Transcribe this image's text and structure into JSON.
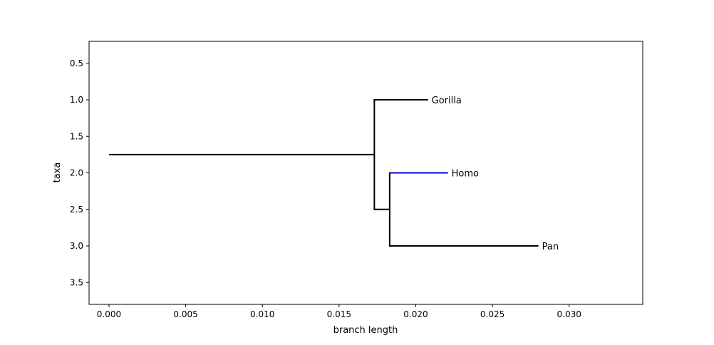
{
  "chart_data": {
    "type": "tree",
    "xlabel": "branch length",
    "ylabel": "taxa",
    "xlim": [
      -0.0013,
      0.0348
    ],
    "ylim": [
      3.8,
      0.2
    ],
    "grid": false,
    "xticks": [
      0.0,
      0.005,
      0.01,
      0.015,
      0.02,
      0.025,
      0.03
    ],
    "xtick_labels": [
      "0.000",
      "0.005",
      "0.010",
      "0.015",
      "0.020",
      "0.025",
      "0.030"
    ],
    "yticks": [
      0.5,
      1.0,
      1.5,
      2.0,
      2.5,
      3.0,
      3.5
    ],
    "ytick_labels": [
      "0.5",
      "1.0",
      "1.5",
      "2.0",
      "2.5",
      "3.0",
      "3.5"
    ],
    "branches": [
      {
        "from": "root",
        "x0": 0.0,
        "x1": 0.0173,
        "y": 1.75,
        "color": "#000000"
      },
      {
        "from": "clade1",
        "x0": 0.0173,
        "x1": 0.0208,
        "y": 1.0,
        "color": "#000000",
        "taxon": "Gorilla"
      },
      {
        "from": "clade1",
        "x0": 0.0173,
        "x1": 0.0183,
        "y": 2.5,
        "color": "#000000"
      },
      {
        "from": "clade2",
        "x0": 0.0183,
        "x1": 0.0221,
        "y": 2.0,
        "color": "#0000cc",
        "taxon": "Homo"
      },
      {
        "from": "clade2",
        "x0": 0.0183,
        "x1": 0.028,
        "y": 3.0,
        "color": "#000000",
        "taxon": "Pan"
      }
    ],
    "connectors": [
      {
        "x": 0.0173,
        "y0": 1.0,
        "y1": 2.5,
        "color": "#000000"
      },
      {
        "x": 0.0183,
        "y0": 2.0,
        "y1": 3.0,
        "color": "#000000"
      }
    ],
    "taxa": [
      {
        "label": "Gorilla",
        "x": 0.0208,
        "y": 1.0
      },
      {
        "label": "Homo",
        "x": 0.0221,
        "y": 2.0
      },
      {
        "label": "Pan",
        "x": 0.028,
        "y": 3.0
      }
    ]
  }
}
